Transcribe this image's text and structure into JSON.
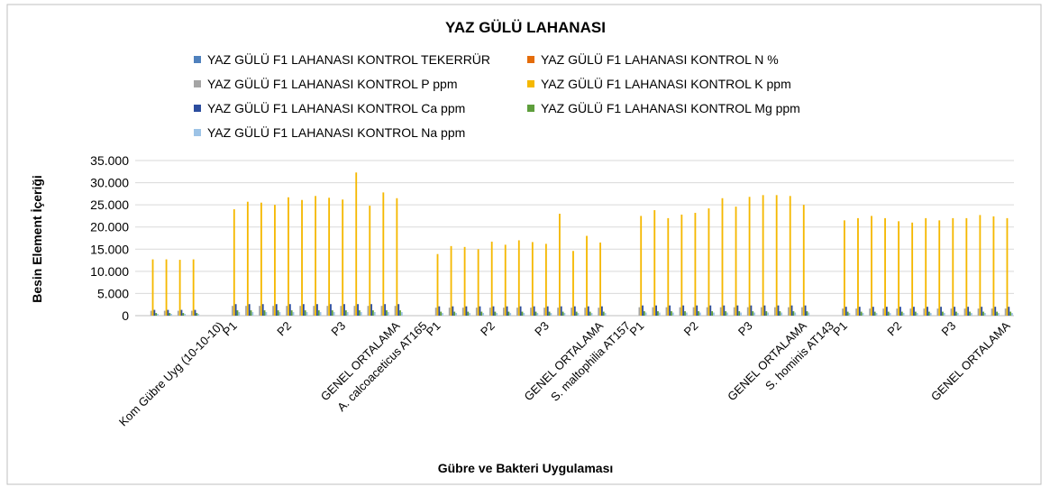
{
  "chart_data": {
    "type": "bar",
    "title": "YAZ GÜLÜ LAHANASI",
    "x_label": "Gübre ve Bakteri Uygulaması",
    "y_label": "Besin Element İçeriği",
    "categories": [
      null,
      null,
      null,
      null,
      null,
      "Kom Gübre Uyg (10-10-10)",
      "P1",
      null,
      null,
      null,
      "P2",
      null,
      null,
      null,
      "P3",
      null,
      null,
      null,
      "GENEL ORTALAMA",
      null,
      "A. calcoaceticus AT165",
      "P1",
      null,
      null,
      null,
      "P2",
      null,
      null,
      null,
      "P3",
      null,
      null,
      null,
      "GENEL ORTALAMA",
      null,
      "S. maltophilia AT157",
      "P1",
      null,
      null,
      null,
      "P2",
      null,
      null,
      null,
      "P3",
      null,
      null,
      null,
      "GENEL ORTALAMA",
      null,
      "S. hominis AT143",
      "P1",
      null,
      null,
      null,
      "P2",
      null,
      null,
      null,
      "P3",
      null,
      null,
      null,
      "GENEL ORTALAMA"
    ],
    "series": [
      {
        "name": "YAZ GÜLÜ F1 LAHANASI KONTROL TEKERRÜR",
        "color": "#4f81bd",
        "values": [
          1,
          2,
          3,
          2,
          null,
          null,
          1,
          2,
          3,
          2,
          1,
          2,
          3,
          2,
          1,
          2,
          3,
          2,
          2,
          null,
          null,
          1,
          2,
          3,
          2,
          1,
          2,
          3,
          2,
          1,
          2,
          3,
          2,
          2,
          null,
          null,
          1,
          2,
          3,
          2,
          1,
          2,
          3,
          2,
          1,
          2,
          3,
          2,
          2,
          null,
          null,
          1,
          2,
          3,
          2,
          1,
          2,
          3,
          2,
          1,
          2,
          3,
          2,
          2
        ]
      },
      {
        "name": "YAZ GÜLÜ F1 LAHANASI KONTROL N %",
        "color": "#e46c0a",
        "values": [
          2.1,
          2.1,
          2.1,
          2.1,
          null,
          null,
          2.5,
          2.5,
          2.5,
          2.5,
          2.5,
          2.5,
          2.5,
          2.5,
          2.5,
          2.5,
          2.5,
          2.5,
          2.5,
          null,
          null,
          2.5,
          2.5,
          2.5,
          2.5,
          2.5,
          2.5,
          2.5,
          2.5,
          2.5,
          2.5,
          2.5,
          2.5,
          2.5,
          null,
          null,
          2.5,
          2.5,
          2.5,
          2.5,
          2.5,
          2.5,
          2.5,
          2.5,
          2.5,
          2.5,
          2.5,
          2.5,
          2.5,
          null,
          null,
          2.5,
          2.5,
          2.5,
          2.5,
          2.5,
          2.5,
          2.5,
          2.5,
          2.5,
          2.5,
          2.5,
          2.5,
          2.5
        ]
      },
      {
        "name": "YAZ GÜLÜ F1 LAHANASI KONTROL P ppm",
        "color": "#a5a5a5",
        "values": [
          1100,
          1100,
          1100,
          1100,
          null,
          null,
          2200,
          2200,
          2200,
          2200,
          2200,
          2200,
          2200,
          2200,
          2200,
          2200,
          2200,
          2200,
          2200,
          null,
          null,
          1800,
          1800,
          1800,
          1800,
          1800,
          1800,
          1800,
          1800,
          1800,
          1800,
          1800,
          1800,
          1800,
          null,
          null,
          1900,
          1900,
          1900,
          1900,
          1900,
          1900,
          1900,
          1900,
          1900,
          1900,
          1900,
          1900,
          1900,
          null,
          null,
          1600,
          1600,
          1600,
          1600,
          1600,
          1600,
          1600,
          1600,
          1600,
          1600,
          1600,
          1600,
          1600
        ]
      },
      {
        "name": "YAZ GÜLÜ F1 LAHANASI KONTROL K ppm",
        "color": "#f5b800",
        "values": [
          12700,
          12700,
          12600,
          12700,
          null,
          null,
          24000,
          25700,
          25500,
          25000,
          26700,
          26100,
          27000,
          26600,
          26200,
          32300,
          24800,
          27800,
          26500,
          null,
          null,
          13900,
          15700,
          15500,
          15000,
          16700,
          16000,
          17000,
          16600,
          16200,
          23000,
          14600,
          18000,
          16500,
          null,
          null,
          22500,
          23800,
          22000,
          22800,
          23200,
          24200,
          26500,
          24600,
          26800,
          27200,
          27200,
          27000,
          25000,
          null,
          null,
          21500,
          22000,
          22500,
          22000,
          21300,
          21000,
          22000,
          21500,
          22000,
          22000,
          22700,
          22400,
          22000
        ]
      },
      {
        "name": "YAZ GÜLÜ F1 LAHANASI KONTROL Ca ppm",
        "color": "#2c4d9e",
        "values": [
          1300,
          1300,
          1300,
          1300,
          null,
          null,
          2600,
          2600,
          2600,
          2600,
          2600,
          2600,
          2600,
          2600,
          2600,
          2600,
          2600,
          2600,
          2600,
          null,
          null,
          2100,
          2100,
          2100,
          2100,
          2100,
          2100,
          2100,
          2100,
          2100,
          2100,
          2100,
          2100,
          2100,
          null,
          null,
          2300,
          2300,
          2300,
          2300,
          2300,
          2300,
          2300,
          2300,
          2300,
          2300,
          2300,
          2300,
          2300,
          null,
          null,
          2000,
          2000,
          2000,
          2000,
          2000,
          2000,
          2000,
          2000,
          2000,
          2000,
          2000,
          2000,
          2000
        ]
      },
      {
        "name": "YAZ GÜLÜ F1 LAHANASI KONTROL Mg ppm",
        "color": "#5e9e3c",
        "values": [
          600,
          600,
          600,
          600,
          null,
          null,
          1200,
          1200,
          1200,
          1200,
          1200,
          1200,
          1200,
          1200,
          1200,
          1200,
          1200,
          1200,
          1200,
          null,
          null,
          900,
          900,
          900,
          900,
          900,
          900,
          900,
          900,
          900,
          900,
          900,
          900,
          900,
          null,
          null,
          1000,
          1000,
          1000,
          1000,
          1000,
          1000,
          1000,
          1000,
          1000,
          1000,
          1000,
          1000,
          1000,
          null,
          null,
          900,
          900,
          900,
          900,
          900,
          900,
          900,
          900,
          900,
          900,
          900,
          900,
          900
        ]
      },
      {
        "name": "YAZ GÜLÜ F1 LAHANASI KONTROL Na ppm",
        "color": "#9dc3e6",
        "values": [
          400,
          400,
          400,
          400,
          null,
          null,
          800,
          800,
          800,
          800,
          800,
          800,
          800,
          800,
          800,
          800,
          800,
          800,
          800,
          null,
          null,
          600,
          600,
          600,
          600,
          600,
          600,
          600,
          600,
          600,
          600,
          600,
          600,
          600,
          null,
          null,
          700,
          700,
          700,
          700,
          700,
          700,
          700,
          700,
          700,
          700,
          700,
          700,
          700,
          null,
          null,
          600,
          600,
          600,
          600,
          600,
          600,
          600,
          600,
          600,
          600,
          600,
          600,
          600
        ]
      }
    ],
    "ylim": [
      0,
      35000
    ],
    "yticks": [
      {
        "value": 0,
        "label": "0"
      },
      {
        "value": 5000,
        "label": "5.000"
      },
      {
        "value": 10000,
        "label": "10.000"
      },
      {
        "value": 15000,
        "label": "15.000"
      },
      {
        "value": 20000,
        "label": "20.000"
      },
      {
        "value": 25000,
        "label": "25.000"
      },
      {
        "value": 30000,
        "label": "30.000"
      },
      {
        "value": 35000,
        "label": "35.000"
      }
    ],
    "grid": true,
    "legend": "top"
  }
}
